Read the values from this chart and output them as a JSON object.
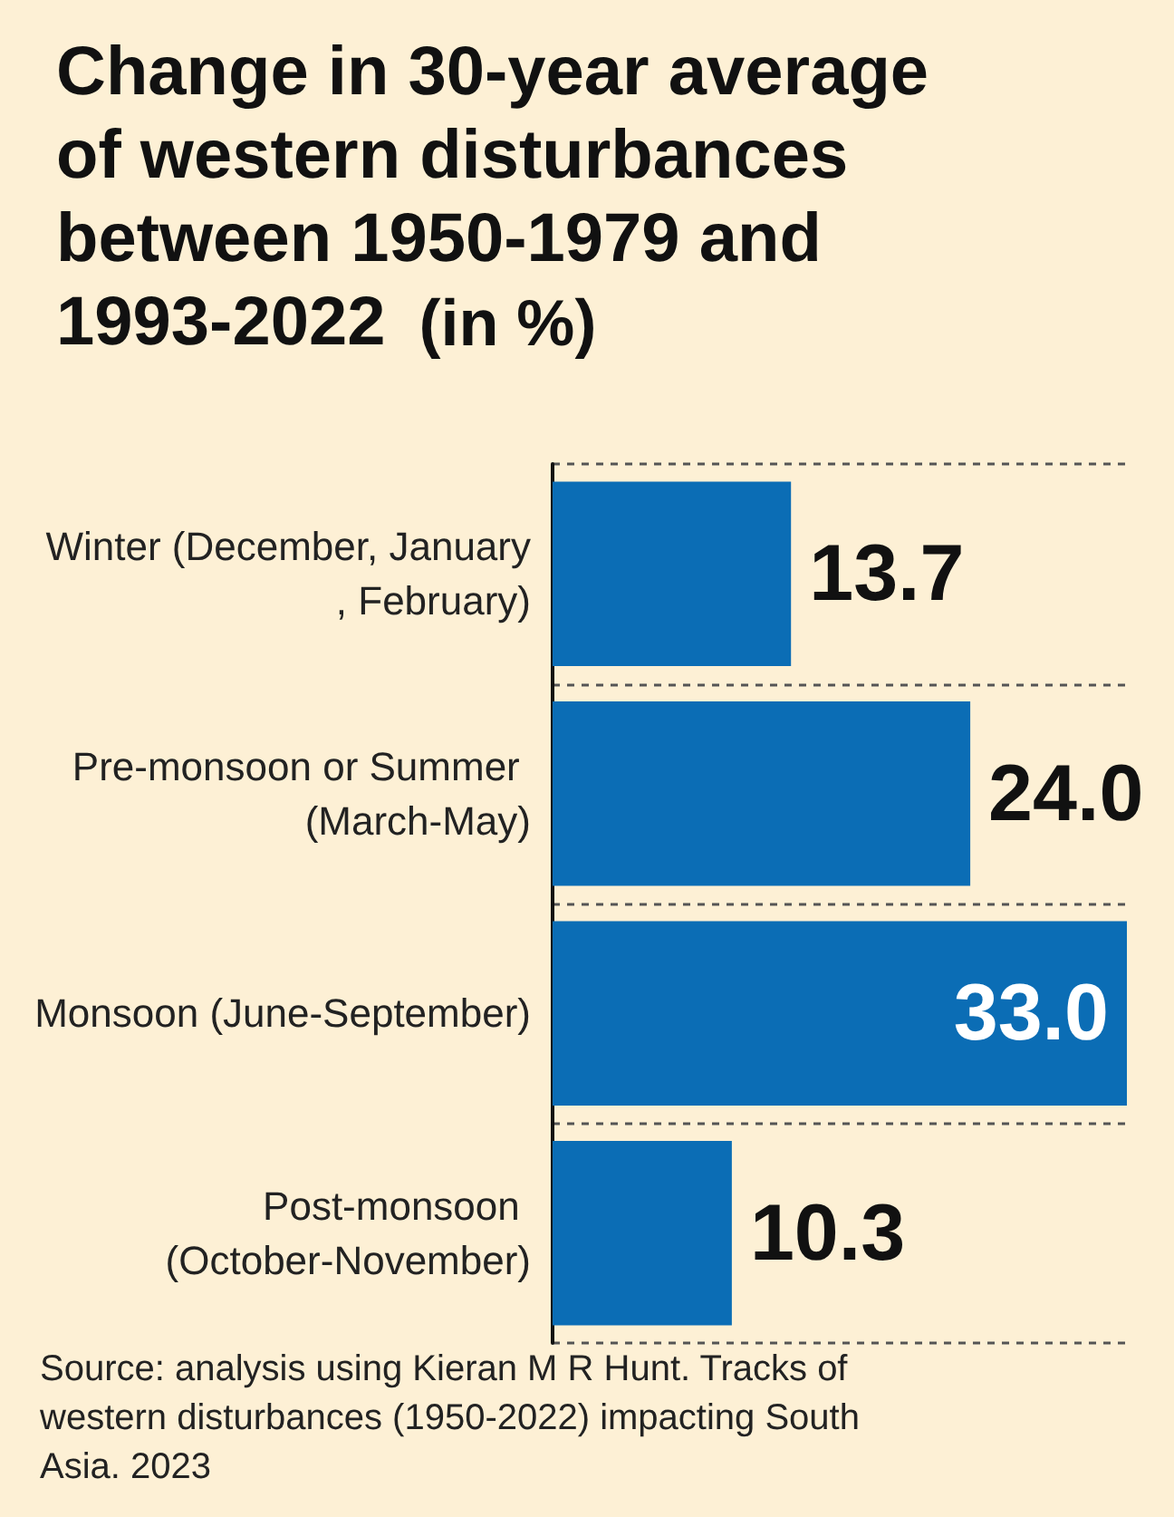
{
  "chart_data": {
    "type": "bar",
    "orientation": "horizontal",
    "title": "Change in 30-year average of western disturbances between 1950-1979 and 1993-2022 (in %)",
    "categories": [
      "Winter (December, January, February)",
      "Pre-monsoon or Summer (March-May)",
      "Monsoon (June-September)",
      "Post-monsoon (October-November)"
    ],
    "values": [
      13.7,
      24.0,
      33.0,
      10.3
    ],
    "value_labels": [
      "13.7",
      "24.0",
      "33.0",
      "10.3"
    ],
    "color": "#0b6db5",
    "grid": "y",
    "annotations": [
      "Source: analysis using Kieran M R Hunt. Tracks of western disturbances (1950-2022) impacting South Asia. 2023"
    ]
  }
}
